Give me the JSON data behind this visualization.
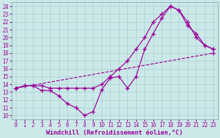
{
  "line1_x": [
    0,
    1,
    2,
    3,
    4,
    5,
    6,
    7,
    8,
    9,
    10,
    11,
    12,
    13,
    14,
    15,
    16,
    17,
    18,
    19,
    20,
    21,
    22,
    23
  ],
  "line1_y": [
    13.5,
    13.8,
    13.8,
    13.8,
    13.5,
    13.5,
    13.5,
    13.5,
    13.5,
    13.5,
    14.0,
    15.0,
    16.0,
    17.0,
    18.5,
    20.0,
    22.0,
    23.0,
    24.0,
    23.5,
    21.5,
    20.5,
    19.0,
    18.5
  ],
  "line2_x": [
    0,
    1,
    2,
    3,
    4,
    5,
    6,
    7,
    8,
    9,
    10,
    11,
    12,
    13,
    14,
    15,
    16,
    17,
    18,
    19,
    20,
    21,
    22,
    23
  ],
  "line2_y": [
    13.5,
    13.8,
    13.8,
    13.2,
    13.2,
    12.5,
    11.5,
    11.0,
    10.0,
    10.5,
    13.3,
    14.8,
    15.0,
    13.5,
    15.0,
    18.5,
    20.5,
    22.5,
    24.0,
    23.5,
    22.0,
    20.0,
    19.0,
    18.5
  ],
  "line3_x": [
    0,
    23
  ],
  "line3_y": [
    13.5,
    18.0
  ],
  "color": "#990099",
  "bg_color": "#cce8e8",
  "grid_color": "#aad4d4",
  "xlabel": "Windchill (Refroidissement éolien,°C)",
  "xlim": [
    -0.5,
    23.5
  ],
  "ylim": [
    9.5,
    24.5
  ],
  "xticks": [
    0,
    1,
    2,
    3,
    4,
    5,
    6,
    7,
    8,
    9,
    10,
    11,
    12,
    13,
    14,
    15,
    16,
    17,
    18,
    19,
    20,
    21,
    22,
    23
  ],
  "yticks": [
    10,
    11,
    12,
    13,
    14,
    15,
    16,
    17,
    18,
    19,
    20,
    21,
    22,
    23,
    24
  ],
  "xlabel_fontsize": 6.5,
  "tick_fontsize": 5.5
}
